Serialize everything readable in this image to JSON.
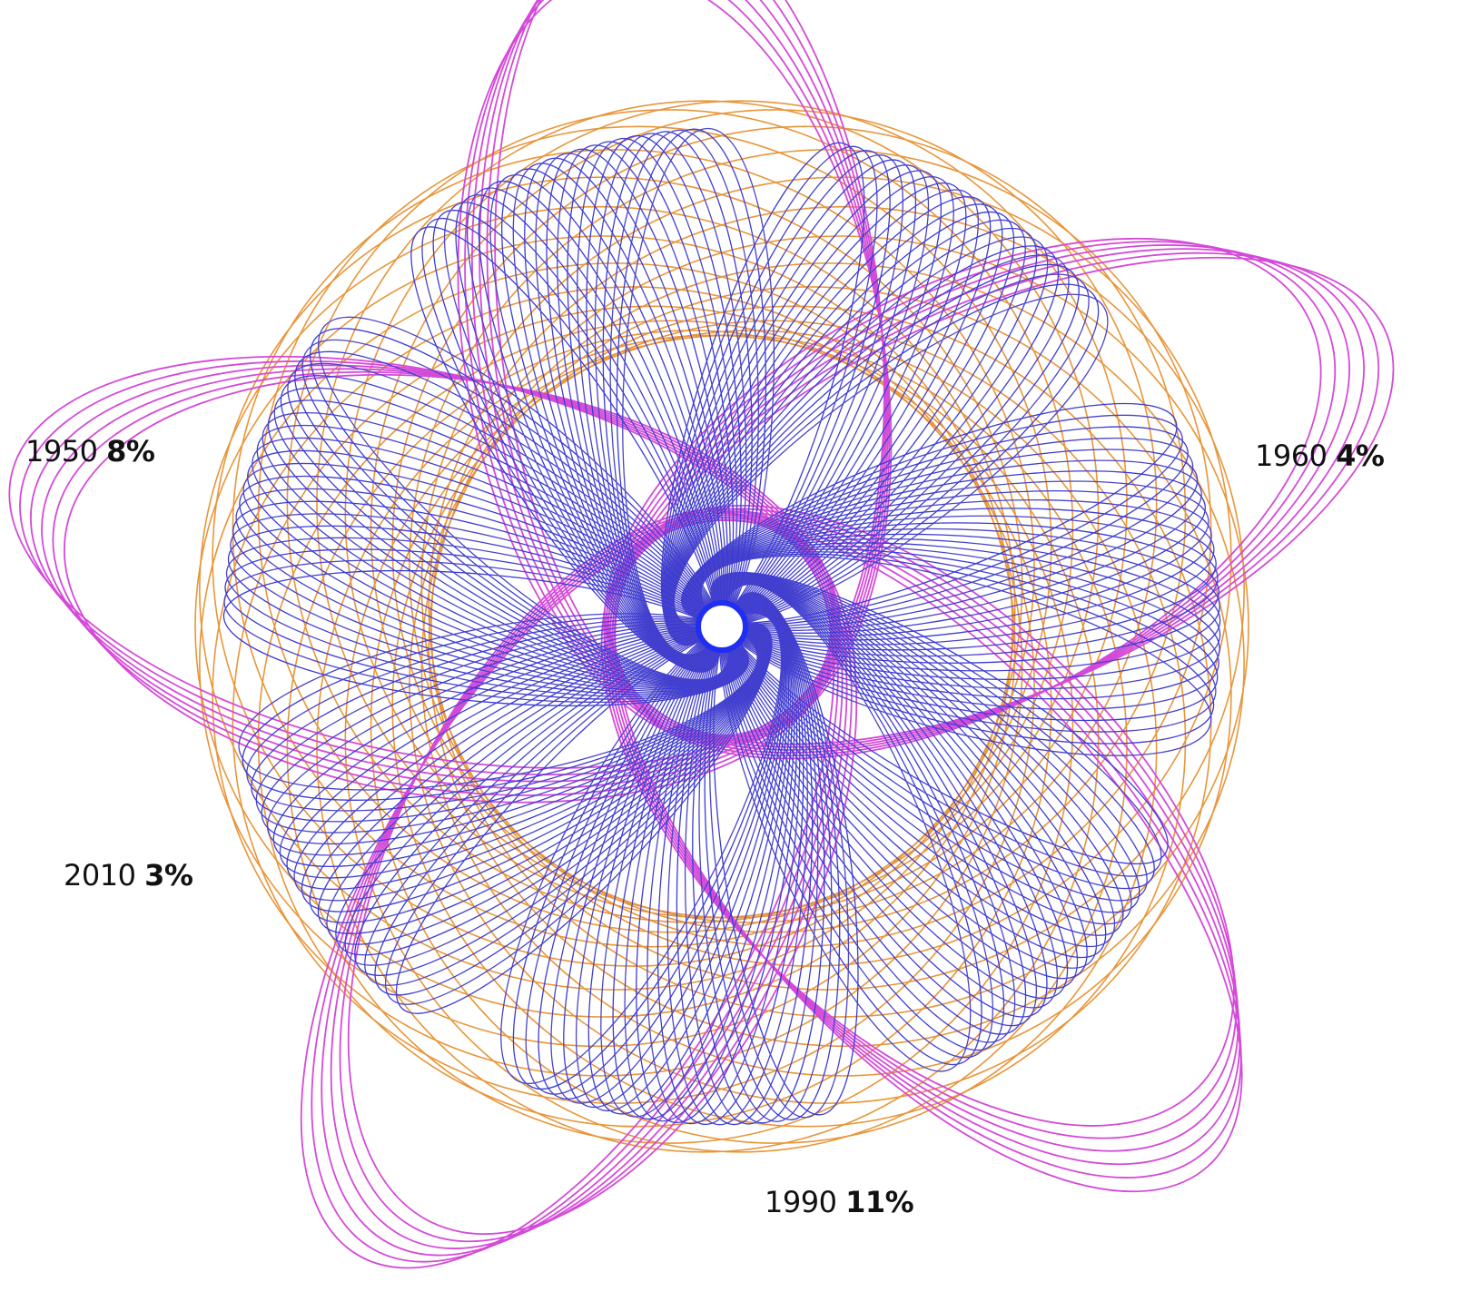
{
  "labels": [
    {
      "year": "1950",
      "value": "8%"
    },
    {
      "year": "1960",
      "value": "4%"
    },
    {
      "year": "2010",
      "value": "3%"
    },
    {
      "year": "1990",
      "value": "11%"
    }
  ]
}
